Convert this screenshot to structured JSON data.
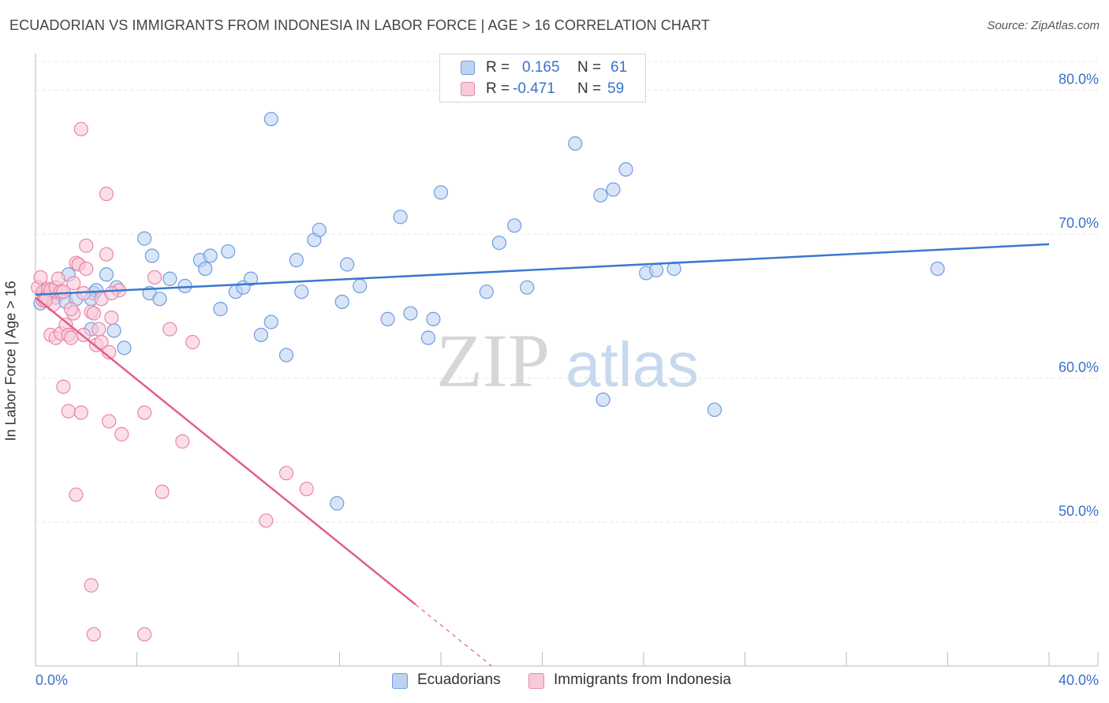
{
  "header": {
    "title": "ECUADORIAN VS IMMIGRANTS FROM INDONESIA IN LABOR FORCE | AGE > 16 CORRELATION CHART",
    "source": "Source: ZipAtlas.com"
  },
  "legend": {
    "rows": [
      {
        "r_label": "R =",
        "r_value": "0.165",
        "n_label": "N =",
        "n_value": "61"
      },
      {
        "r_label": "R =",
        "r_value": "-0.471",
        "n_label": "N =",
        "n_value": "59"
      }
    ]
  },
  "bottom_legend": {
    "items": [
      "Ecuadorians",
      "Immigrants from Indonesia"
    ]
  },
  "watermark": {
    "zip": "ZIP",
    "atlas": "atlas"
  },
  "colors": {
    "blue_fill": "#bcd3f2",
    "blue_stroke": "#6f9be0",
    "blue_line": "#3a78d0",
    "pink_fill": "#f8cad8",
    "pink_stroke": "#ea86a6",
    "pink_line": "#e0608c",
    "axis_text": "#3a72c8",
    "grid": "#e6e6e6"
  },
  "chart_data": {
    "type": "scatter",
    "title": "ECUADORIAN VS IMMIGRANTS FROM INDONESIA IN LABOR FORCE | AGE > 16 CORRELATION CHART",
    "xlabel": "",
    "ylabel": "In Labor Force | Age > 16",
    "xlim": [
      0,
      40
    ],
    "ylim": [
      40,
      82
    ],
    "x_tick_labels": [
      "0.0%",
      "40.0%"
    ],
    "y_ticks": [
      50,
      60,
      70,
      80
    ],
    "y_tick_labels": [
      "50.0%",
      "60.0%",
      "70.0%",
      "80.0%"
    ],
    "grid": true,
    "legend_position": "top-center",
    "series": [
      {
        "name": "Ecuadorians",
        "R": 0.165,
        "N": 61,
        "trend": {
          "x": [
            0,
            40
          ],
          "y": [
            65.8,
            69.3
          ],
          "dashed_from": null
        },
        "points": [
          [
            0.2,
            65.2
          ],
          [
            0.4,
            66.1
          ],
          [
            0.6,
            65.9
          ],
          [
            0.8,
            65.6
          ],
          [
            1.2,
            65.3
          ],
          [
            1.3,
            67.2
          ],
          [
            1.6,
            65.5
          ],
          [
            2.3,
            65.9
          ],
          [
            2.4,
            66.1
          ],
          [
            2.8,
            67.2
          ],
          [
            2.2,
            63.4
          ],
          [
            3.1,
            63.3
          ],
          [
            3.2,
            66.3
          ],
          [
            3.5,
            62.1
          ],
          [
            4.3,
            69.7
          ],
          [
            4.5,
            65.9
          ],
          [
            4.6,
            68.5
          ],
          [
            5.3,
            66.9
          ],
          [
            4.9,
            65.5
          ],
          [
            5.9,
            66.4
          ],
          [
            6.5,
            68.2
          ],
          [
            6.7,
            67.6
          ],
          [
            6.9,
            68.5
          ],
          [
            7.3,
            64.8
          ],
          [
            7.6,
            68.8
          ],
          [
            7.9,
            66.0
          ],
          [
            8.2,
            66.3
          ],
          [
            8.5,
            66.9
          ],
          [
            8.9,
            63.0
          ],
          [
            9.3,
            63.9
          ],
          [
            9.3,
            78.0
          ],
          [
            9.9,
            61.6
          ],
          [
            10.3,
            68.2
          ],
          [
            10.5,
            66.0
          ],
          [
            11.0,
            69.6
          ],
          [
            11.2,
            70.3
          ],
          [
            11.9,
            51.3
          ],
          [
            12.1,
            65.3
          ],
          [
            12.3,
            67.9
          ],
          [
            12.8,
            66.4
          ],
          [
            13.9,
            64.1
          ],
          [
            14.4,
            71.2
          ],
          [
            14.8,
            64.5
          ],
          [
            15.5,
            62.8
          ],
          [
            15.7,
            64.1
          ],
          [
            16.0,
            72.9
          ],
          [
            17.8,
            66.0
          ],
          [
            18.3,
            69.4
          ],
          [
            18.9,
            70.6
          ],
          [
            19.4,
            66.3
          ],
          [
            21.3,
            76.3
          ],
          [
            22.4,
            58.5
          ],
          [
            22.3,
            72.7
          ],
          [
            22.8,
            73.1
          ],
          [
            23.3,
            74.5
          ],
          [
            24.1,
            67.3
          ],
          [
            24.5,
            67.5
          ],
          [
            25.2,
            67.6
          ],
          [
            26.8,
            57.8
          ],
          [
            35.6,
            67.6
          ],
          [
            2.2,
            65.5
          ]
        ]
      },
      {
        "name": "Immigrants from Indonesia",
        "R": -0.471,
        "N": 59,
        "trend": {
          "x": [
            0,
            18.0
          ],
          "y": [
            65.6,
            40.0
          ],
          "dashed_from": 15.0
        },
        "points": [
          [
            0.1,
            66.3
          ],
          [
            0.2,
            67.0
          ],
          [
            0.3,
            66.0
          ],
          [
            0.3,
            65.4
          ],
          [
            0.4,
            65.6
          ],
          [
            0.5,
            66.2
          ],
          [
            0.6,
            66.1
          ],
          [
            0.7,
            65.1
          ],
          [
            0.6,
            63.0
          ],
          [
            0.8,
            62.8
          ],
          [
            0.8,
            66.3
          ],
          [
            0.9,
            66.9
          ],
          [
            1.0,
            66.0
          ],
          [
            1.0,
            63.1
          ],
          [
            1.1,
            59.4
          ],
          [
            1.2,
            63.7
          ],
          [
            1.3,
            57.7
          ],
          [
            1.3,
            63.0
          ],
          [
            1.4,
            62.8
          ],
          [
            1.5,
            64.5
          ],
          [
            1.6,
            51.9
          ],
          [
            1.5,
            66.6
          ],
          [
            1.6,
            68.0
          ],
          [
            1.7,
            67.9
          ],
          [
            1.8,
            77.3
          ],
          [
            1.8,
            57.6
          ],
          [
            1.9,
            63.0
          ],
          [
            2.0,
            69.2
          ],
          [
            1.9,
            65.9
          ],
          [
            2.0,
            67.6
          ],
          [
            2.2,
            45.6
          ],
          [
            2.2,
            64.6
          ],
          [
            2.3,
            64.5
          ],
          [
            2.3,
            42.2
          ],
          [
            2.4,
            62.3
          ],
          [
            2.5,
            63.4
          ],
          [
            2.6,
            65.5
          ],
          [
            2.6,
            62.5
          ],
          [
            2.8,
            68.6
          ],
          [
            2.8,
            72.8
          ],
          [
            2.9,
            61.8
          ],
          [
            3.0,
            64.2
          ],
          [
            2.9,
            57.0
          ],
          [
            3.3,
            66.1
          ],
          [
            3.4,
            56.1
          ],
          [
            3.0,
            65.9
          ],
          [
            4.3,
            57.6
          ],
          [
            4.3,
            42.2
          ],
          [
            4.7,
            67.0
          ],
          [
            5.0,
            52.1
          ],
          [
            5.3,
            63.4
          ],
          [
            5.8,
            55.6
          ],
          [
            6.2,
            62.5
          ],
          [
            9.1,
            50.1
          ],
          [
            9.9,
            53.4
          ],
          [
            10.7,
            52.3
          ],
          [
            0.4,
            65.4
          ],
          [
            1.1,
            66.0
          ],
          [
            1.4,
            64.8
          ]
        ]
      }
    ]
  }
}
